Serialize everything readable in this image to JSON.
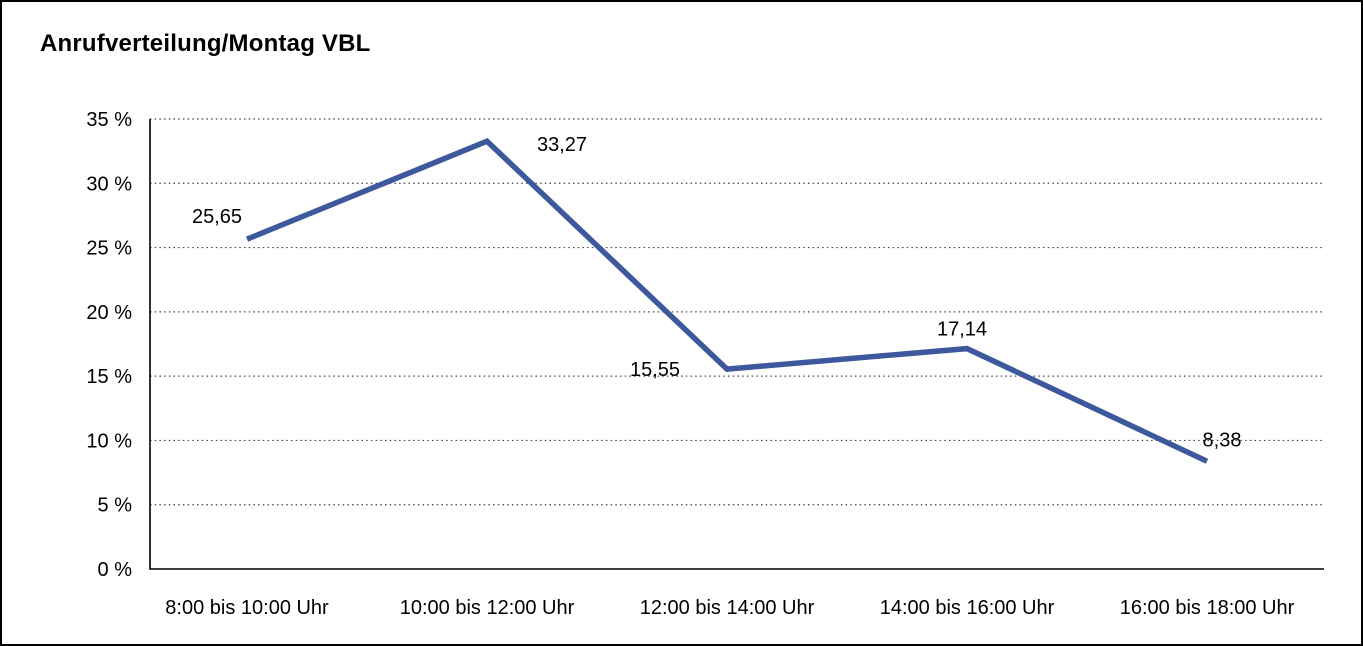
{
  "chart_data": {
    "type": "line",
    "title": "Anrufverteilung/Montag VBL",
    "categories": [
      "8:00 bis 10:00 Uhr",
      "10:00 bis 12:00 Uhr",
      "12:00 bis 14:00 Uhr",
      "14:00 bis 16:00 Uhr",
      "16:00 bis 18:00 Uhr"
    ],
    "values": [
      25.65,
      33.27,
      15.55,
      17.14,
      8.38
    ],
    "value_labels": [
      "25,65",
      "33,27",
      "15,55",
      "17,14",
      "8,38"
    ],
    "y_ticks": [
      "0 %",
      "5 %",
      "10 %",
      "15 %",
      "20 %",
      "25 %",
      "30 %",
      "35 %"
    ],
    "ylim": [
      0,
      35
    ],
    "y_tick_step": 5,
    "xlabel": "",
    "ylabel": "",
    "legend": "none",
    "grid": "horizontal-dotted",
    "line_color": "#3D589C",
    "axis_color": "#000000",
    "grid_color": "#444444"
  }
}
